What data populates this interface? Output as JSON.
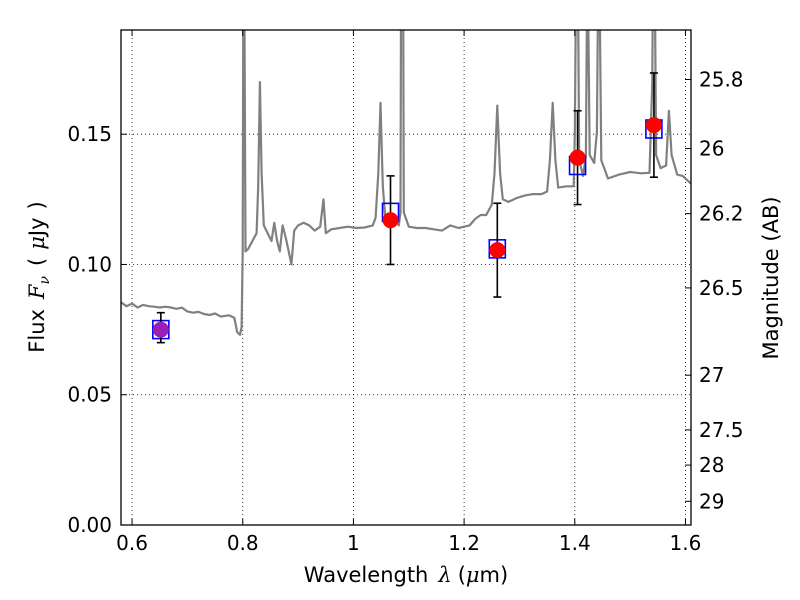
{
  "chart_data": {
    "type": "scatter",
    "xlabel": {
      "prefix": "Wavelength",
      "symbol": "λ",
      "unit_open": "(",
      "unit_mu": "μ",
      "unit_rest": "m)"
    },
    "ylabel": {
      "prefix": "Flux",
      "symbol": "F",
      "sub": "ν",
      "unit_open": "(",
      "unit_mu": "μ",
      "unit_rest": "Jy",
      "unit_close": ")"
    },
    "y2label": "Magnitude (AB)",
    "xlim": [
      0.58,
      1.61
    ],
    "ylim": [
      0.0,
      0.19
    ],
    "grid": true,
    "x_ticks": [
      {
        "v": 0.6,
        "label": "0.6"
      },
      {
        "v": 0.8,
        "label": "0.8"
      },
      {
        "v": 1.0,
        "label": "1"
      },
      {
        "v": 1.2,
        "label": "1.2"
      },
      {
        "v": 1.4,
        "label": "1.4"
      },
      {
        "v": 1.6,
        "label": "1.6"
      }
    ],
    "y_ticks": [
      {
        "v": 0.0,
        "label": "0.00"
      },
      {
        "v": 0.05,
        "label": "0.05"
      },
      {
        "v": 0.1,
        "label": "0.10"
      },
      {
        "v": 0.15,
        "label": "0.15"
      }
    ],
    "y2_ticks": [
      {
        "label": "25.8",
        "flux": 0.171
      },
      {
        "label": "26",
        "flux": 0.1445
      },
      {
        "label": "26.2",
        "flux": 0.1195
      },
      {
        "label": "26.5",
        "flux": 0.091
      },
      {
        "label": "27",
        "flux": 0.0575
      },
      {
        "label": "27.5",
        "flux": 0.0365
      },
      {
        "label": "28",
        "flux": 0.023
      },
      {
        "label": "29",
        "flux": 0.0091
      }
    ],
    "model_spectrum": {
      "color": "#808080",
      "points": [
        [
          0.58,
          0.0855
        ],
        [
          0.59,
          0.084
        ],
        [
          0.6,
          0.085
        ],
        [
          0.61,
          0.0835
        ],
        [
          0.62,
          0.0845
        ],
        [
          0.63,
          0.084
        ],
        [
          0.64,
          0.0838
        ],
        [
          0.65,
          0.0835
        ],
        [
          0.66,
          0.0838
        ],
        [
          0.67,
          0.0835
        ],
        [
          0.68,
          0.083
        ],
        [
          0.69,
          0.0834
        ],
        [
          0.7,
          0.082
        ],
        [
          0.71,
          0.0815
        ],
        [
          0.72,
          0.0818
        ],
        [
          0.73,
          0.081
        ],
        [
          0.74,
          0.0806
        ],
        [
          0.75,
          0.0812
        ],
        [
          0.76,
          0.08
        ],
        [
          0.775,
          0.0805
        ],
        [
          0.785,
          0.0795
        ],
        [
          0.79,
          0.074
        ],
        [
          0.795,
          0.073
        ],
        [
          0.798,
          0.076
        ],
        [
          0.8,
          0.105
        ],
        [
          0.801,
          0.2
        ],
        [
          0.803,
          0.2
        ],
        [
          0.805,
          0.105
        ],
        [
          0.81,
          0.106
        ],
        [
          0.815,
          0.108
        ],
        [
          0.82,
          0.11
        ],
        [
          0.825,
          0.112
        ],
        [
          0.828,
          0.13
        ],
        [
          0.831,
          0.17
        ],
        [
          0.834,
          0.135
        ],
        [
          0.838,
          0.115
        ],
        [
          0.845,
          0.112
        ],
        [
          0.852,
          0.109
        ],
        [
          0.857,
          0.116
        ],
        [
          0.862,
          0.109
        ],
        [
          0.867,
          0.105
        ],
        [
          0.872,
          0.115
        ],
        [
          0.878,
          0.11
        ],
        [
          0.883,
          0.105
        ],
        [
          0.888,
          0.1
        ],
        [
          0.893,
          0.113
        ],
        [
          0.9,
          0.115
        ],
        [
          0.91,
          0.116
        ],
        [
          0.92,
          0.115
        ],
        [
          0.93,
          0.113
        ],
        [
          0.94,
          0.1145
        ],
        [
          0.946,
          0.125
        ],
        [
          0.95,
          0.112
        ],
        [
          0.96,
          0.1135
        ],
        [
          0.975,
          0.114
        ],
        [
          0.99,
          0.1145
        ],
        [
          1.005,
          0.114
        ],
        [
          1.02,
          0.1142
        ],
        [
          1.035,
          0.115
        ],
        [
          1.04,
          0.118
        ],
        [
          1.045,
          0.135
        ],
        [
          1.049,
          0.162
        ],
        [
          1.053,
          0.13
        ],
        [
          1.058,
          0.117
        ],
        [
          1.065,
          0.117
        ],
        [
          1.075,
          0.1175
        ],
        [
          1.082,
          0.115
        ],
        [
          1.085,
          0.12
        ],
        [
          1.086,
          0.2
        ],
        [
          1.09,
          0.2
        ],
        [
          1.091,
          0.12
        ],
        [
          1.1,
          0.1145
        ],
        [
          1.115,
          0.114
        ],
        [
          1.13,
          0.114
        ],
        [
          1.145,
          0.1135
        ],
        [
          1.16,
          0.113
        ],
        [
          1.175,
          0.115
        ],
        [
          1.19,
          0.114
        ],
        [
          1.2,
          0.1145
        ],
        [
          1.21,
          0.115
        ],
        [
          1.22,
          0.1175
        ],
        [
          1.23,
          0.119
        ],
        [
          1.24,
          0.119
        ],
        [
          1.25,
          0.123
        ],
        [
          1.255,
          0.135
        ],
        [
          1.26,
          0.161
        ],
        [
          1.265,
          0.135
        ],
        [
          1.27,
          0.125
        ],
        [
          1.28,
          0.124
        ],
        [
          1.295,
          0.1255
        ],
        [
          1.31,
          0.1265
        ],
        [
          1.325,
          0.127
        ],
        [
          1.34,
          0.127
        ],
        [
          1.35,
          0.128
        ],
        [
          1.355,
          0.14
        ],
        [
          1.36,
          0.162
        ],
        [
          1.365,
          0.14
        ],
        [
          1.37,
          0.1295
        ],
        [
          1.385,
          0.13
        ],
        [
          1.398,
          0.13
        ],
        [
          1.4,
          0.15
        ],
        [
          1.402,
          0.2
        ],
        [
          1.406,
          0.2
        ],
        [
          1.408,
          0.14
        ],
        [
          1.415,
          0.134
        ],
        [
          1.42,
          0.142
        ],
        [
          1.422,
          0.2
        ],
        [
          1.424,
          0.2
        ],
        [
          1.427,
          0.142
        ],
        [
          1.435,
          0.139
        ],
        [
          1.44,
          0.151
        ],
        [
          1.442,
          0.2
        ],
        [
          1.445,
          0.2
        ],
        [
          1.448,
          0.14
        ],
        [
          1.46,
          0.133
        ],
        [
          1.48,
          0.1345
        ],
        [
          1.5,
          0.1355
        ],
        [
          1.52,
          0.135
        ],
        [
          1.535,
          0.1352
        ],
        [
          1.54,
          0.17
        ],
        [
          1.541,
          0.2
        ],
        [
          1.545,
          0.2
        ],
        [
          1.547,
          0.142
        ],
        [
          1.555,
          0.137
        ],
        [
          1.565,
          0.138
        ],
        [
          1.57,
          0.159
        ],
        [
          1.575,
          0.142
        ],
        [
          1.585,
          0.1345
        ],
        [
          1.595,
          0.134
        ],
        [
          1.605,
          0.132
        ],
        [
          1.61,
          0.131
        ]
      ]
    },
    "photometry": [
      {
        "x": 0.652,
        "model": 0.075,
        "flux": 0.075,
        "err_lo": 0.005,
        "err_hi": 0.0065,
        "color": "#9b1fb5"
      },
      {
        "x": 1.067,
        "model": 0.12,
        "flux": 0.117,
        "err_lo": 0.017,
        "err_hi": 0.017,
        "color": "#ff0000"
      },
      {
        "x": 1.26,
        "model": 0.106,
        "flux": 0.1055,
        "err_lo": 0.018,
        "err_hi": 0.018,
        "color": "#ff0000"
      },
      {
        "x": 1.405,
        "model": 0.138,
        "flux": 0.141,
        "err_lo": 0.018,
        "err_hi": 0.018,
        "color": "#ff0000"
      },
      {
        "x": 1.543,
        "model": 0.152,
        "flux": 0.1535,
        "err_lo": 0.02,
        "err_hi": 0.02,
        "color": "#ff0000"
      }
    ],
    "box_color": "#0000ff",
    "errorbar_color": "#000000"
  }
}
